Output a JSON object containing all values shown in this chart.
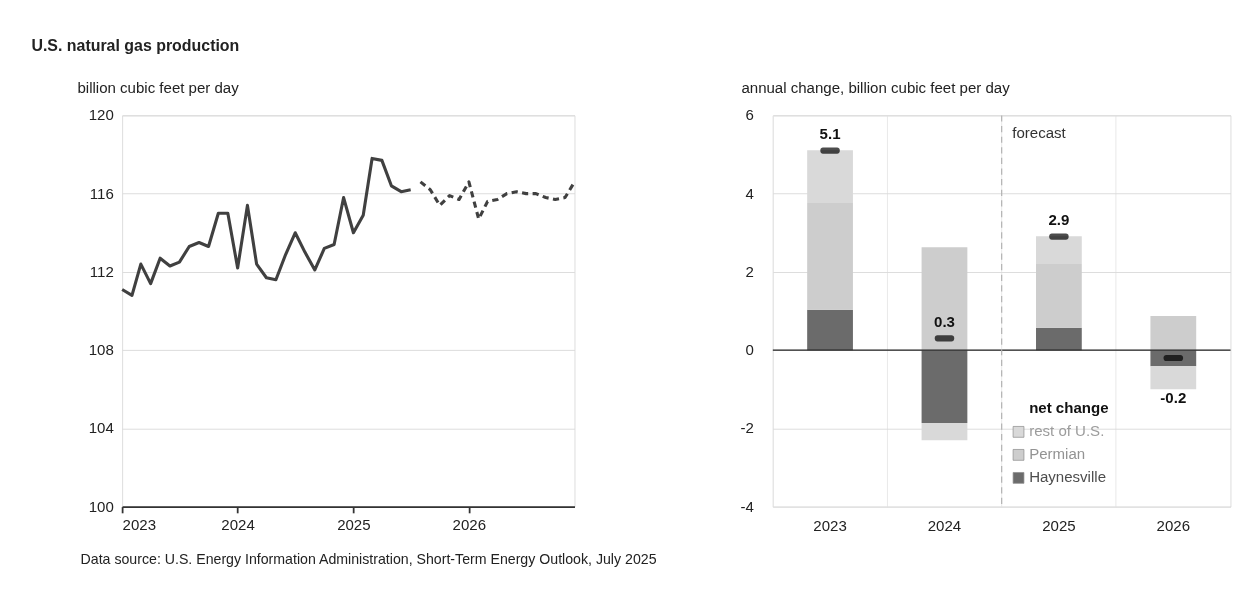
{
  "chart_data": [
    {
      "type": "line",
      "title": "U.S. natural gas production",
      "ylabel": "billion cubic feet per day",
      "xlim": [
        "2023-01",
        "2026-12"
      ],
      "xticks": [
        {
          "value": "2023-01",
          "label": "2023"
        },
        {
          "value": "2024-01",
          "label": "2024"
        },
        {
          "value": "2025-01",
          "label": "2025"
        },
        {
          "value": "2026-01",
          "label": "2026"
        }
      ],
      "ylim": [
        100,
        120
      ],
      "yticks": [
        100,
        104,
        108,
        112,
        116,
        120
      ],
      "grid": "y",
      "annotations": [
        "Data source: U.S. Energy Information Administration, Short-Term Energy Outlook, July 2025"
      ],
      "series": [
        {
          "color": "#404040",
          "line_style": "solid",
          "x": [
            "2023-01",
            "2023-02",
            "2023-03",
            "2023-04",
            "2023-05",
            "2023-06",
            "2023-07",
            "2023-08",
            "2023-09",
            "2023-10",
            "2023-11",
            "2023-12",
            "2024-01",
            "2024-02",
            "2024-03",
            "2024-04",
            "2024-05",
            "2024-06",
            "2024-07",
            "2024-08",
            "2024-09",
            "2024-10",
            "2024-11",
            "2024-12",
            "2025-01",
            "2025-02",
            "2025-03",
            "2025-04",
            "2025-05",
            "2025-06",
            "2025-07"
          ],
          "values": [
            111.1,
            110.8,
            112.4,
            111.4,
            112.7,
            112.3,
            112.5,
            113.3,
            113.5,
            113.3,
            115.0,
            115.0,
            112.2,
            115.4,
            112.4,
            111.7,
            111.6,
            112.9,
            114.0,
            113.0,
            112.1,
            113.2,
            113.4,
            115.8,
            114.0,
            114.9,
            117.8,
            117.7,
            116.4,
            116.1,
            116.2
          ]
        },
        {
          "color": "#404040",
          "line_style": "dashed",
          "x": [
            "2025-08",
            "2025-09",
            "2025-10",
            "2025-11",
            "2025-12",
            "2026-01",
            "2026-02",
            "2026-03",
            "2026-04",
            "2026-05",
            "2026-06",
            "2026-07",
            "2026-08",
            "2026-09",
            "2026-10",
            "2026-11",
            "2026-12"
          ],
          "values": [
            116.6,
            116.2,
            115.4,
            115.9,
            115.7,
            116.6,
            114.7,
            115.6,
            115.7,
            116.0,
            116.1,
            116.0,
            116.0,
            115.8,
            115.7,
            115.8,
            116.6
          ]
        }
      ]
    },
    {
      "type": "bar",
      "stacked": true,
      "ylabel": "annual change, billion cubic feet per day",
      "categories": [
        "2023",
        "2024",
        "2025",
        "2026"
      ],
      "ylim": [
        -4,
        6
      ],
      "yticks": [
        -4,
        -2,
        0,
        2,
        4,
        6
      ],
      "grid": true,
      "legend": "bottom right",
      "series": [
        {
          "name": "Haynesville",
          "color": "#6b6b6b",
          "values": [
            1.03,
            -1.86,
            0.57,
            -0.41
          ]
        },
        {
          "name": "Permian",
          "color": "#cdcdcd",
          "values": [
            2.73,
            2.63,
            1.63,
            0.87
          ]
        },
        {
          "name": "rest of U.S.",
          "color": "#d9d9d9",
          "values": [
            1.35,
            -0.44,
            0.71,
            -0.59
          ]
        },
        {
          "name": "net change",
          "type": "scatter",
          "color": "#000000",
          "values": [
            5.1,
            0.3,
            2.9,
            -0.2
          ],
          "value_labels": [
            "5.1",
            "0.3",
            "2.9",
            "-0.2"
          ]
        }
      ],
      "ref_lines": [
        {
          "axis": "x",
          "value": "2025",
          "label": "forecast",
          "line_style": "dashed",
          "color": "#b0b0b0"
        }
      ]
    }
  ]
}
